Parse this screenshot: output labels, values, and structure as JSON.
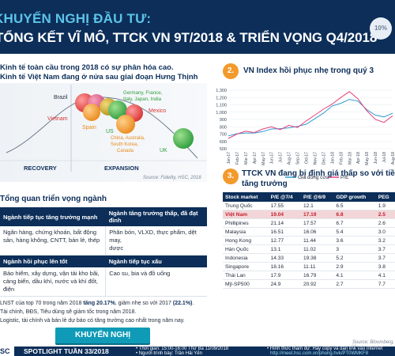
{
  "header": {
    "tag": "KHUYẾN NGHỊ ĐẦU TƯ:",
    "title": "TỔNG KẾT VĨ MÔ, TTCK VN 9T/2018 & TRIỂN VỌNG Q4/2018",
    "badge": "10%"
  },
  "intro": {
    "line1": "Kinh tế toàn cầu trong 2018 có sự phân hóa cao.",
    "line2": "Kinh tế Việt Nam đang ở nửa sau giai đoạn Hưng Thịnh"
  },
  "cycle": {
    "phases": [
      "RECOVERY",
      "EXPANSION"
    ],
    "countries": [
      "Brazil",
      "Vietnam",
      "Spain",
      "US",
      "Germany, France,",
      "Italy, Japan, India",
      "Mexico",
      "China, Australia,",
      "South Korea,",
      "Canada",
      "UK"
    ],
    "source": "Source: Fidelity, HSC, 2018",
    "colors": {
      "navy": "#0c2e59",
      "orange": "#f39a2d",
      "red": "#e24b4b",
      "green": "#39b54a",
      "gold": "#c9a227",
      "teal": "#14a0b9"
    }
  },
  "outlook": {
    "title": "Tổng quan triển vọng ngành",
    "h1": "Ngành tiếp tục tăng trưởng mạnh",
    "h2": "Ngành tăng trưởng thấp, đã đạt đỉnh",
    "c1": [
      "Ngân hàng, chứng khoán, bất động",
      "sản, hàng không, CNTT, bán lẻ, thép"
    ],
    "c2": [
      "Phân bón, VLXD, thực phẩm, dệt may,",
      "dược"
    ],
    "h3": "Ngành hồi phục lên tốt",
    "h4": "Ngành tiếp tục xấu",
    "c3": [
      "Bảo hiểm, xây dựng, vận tải kho bãi,",
      "cảng biển, dầu khí, nước và khí đốt, điện"
    ],
    "c4": [
      "Cao su, bia và đồ uống"
    ]
  },
  "notes": {
    "n1a": "LNST của top 70 trong năm 2018 ",
    "n1b": "tăng 20.17%",
    "n1c": ", giảm nhẹ so với 2017 ",
    "n1d": "(22.1%)",
    "n1e": ".",
    "n2": "Tài chính, BĐS, Tiêu dùng sẽ giảm tốc trong năm 2018.",
    "n3": "Logistic, tài chính và bán lẻ dự báo có tăng trưởng cao nhất trong năm nay."
  },
  "button": "KHUYẾN NGHỊ",
  "section2": {
    "num": "2.",
    "title": "VN Index hồi phục nhẹ trong quý 3"
  },
  "chart_data": {
    "type": "line",
    "title": "",
    "x": [
      "Jan-17",
      "Feb-17",
      "Mar-17",
      "Apr-17",
      "May-17",
      "Jun-17",
      "Jul-17",
      "Aug-17",
      "Sep-17",
      "Oct-17",
      "Nov-17",
      "Dec-17",
      "Jan-18",
      "Feb-18",
      "Mar-18",
      "Apr-18",
      "May-18",
      "Jun-18",
      "Jul-18",
      "Aug-18"
    ],
    "ylim": [
      500,
      1300
    ],
    "yticks": [
      "1,300",
      "1,200",
      "1,100",
      "1,000",
      "900",
      "800",
      "700",
      "600",
      "500"
    ],
    "series": [
      {
        "name": "Giá đóng cửa",
        "color": "#2e9ad6",
        "values": [
          675,
          705,
          715,
          715,
          735,
          770,
          775,
          785,
          805,
          835,
          910,
          985,
          1085,
          1120,
          1175,
          1150,
          1035,
          960,
          935,
          985
        ]
      },
      {
        "name": "P/E",
        "color": "#e8417a",
        "values": [
          640,
          700,
          740,
          720,
          770,
          800,
          760,
          820,
          790,
          880,
          960,
          1040,
          1110,
          1200,
          1280,
          1180,
          1020,
          900,
          860,
          950
        ]
      }
    ],
    "legend": "bottom",
    "source": "Source: Bloomberg, HSC"
  },
  "section3": {
    "num": "3.",
    "title": "TTCK VN đang bị định giá thấp so với tiềm",
    "title2": "tăng trưởng"
  },
  "market_table": {
    "headers": [
      "Stock market",
      "P/E @7/4",
      "P/E @6/9",
      "GDP growth",
      "PEG"
    ],
    "rows": [
      [
        "Trung Quốc",
        "17.55",
        "12.1",
        "6.5",
        "1.9"
      ],
      [
        "Việt Nam",
        "19.04",
        "17.19",
        "6.8",
        "2.5"
      ],
      [
        "Phillipines",
        "21.14",
        "17.57",
        "6.7",
        "2.6"
      ],
      [
        "Malaysia",
        "16.51",
        "16.06",
        "5.4",
        "3.0"
      ],
      [
        "Hong Kong",
        "12.77",
        "11.44",
        "3.6",
        "3.2"
      ],
      [
        "Hàn Quốc",
        "13.1",
        "11.02",
        "3",
        "3.7"
      ],
      [
        "Indonesia",
        "14.33",
        "19.38",
        "5.2",
        "3.7"
      ],
      [
        "Singapore",
        "18.16",
        "11.11",
        "2.9",
        "3.8"
      ],
      [
        "Thái Lan",
        "17.9",
        "16.79",
        "4.1",
        "4.1"
      ],
      [
        "Mỹ-SP500",
        "24.9",
        "20.92",
        "2.7",
        "7.7"
      ]
    ],
    "highlight_row": 1,
    "source": "Source: Bloomberg, V"
  },
  "footer": {
    "logo": "SC",
    "spotlight": "SPOTLIGHT TUẦN 33/2018",
    "time": "• Thời gian: 15:00-16:00  Thứ Ba 11/09/2018",
    "presenter": "• Người trình bày: Trần Hải Yến",
    "form": "• Hình thức tham dự: Hãy copy và dán link vào Internet",
    "link": "http://meet.hsc.com.vn/phong.hvk/PT0WMKF8"
  }
}
